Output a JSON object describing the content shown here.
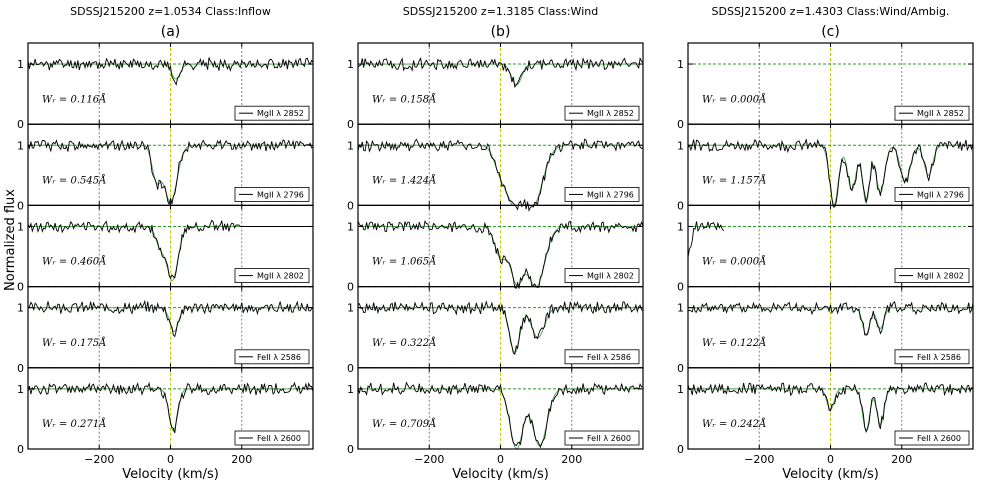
{
  "chart_data": {
    "type": "line",
    "ylabel": "Normalized flux",
    "xlabel": "Velocity (km/s)",
    "xlim": [
      -400,
      400
    ],
    "ylim": [
      0,
      1.35
    ],
    "xticks": [
      -200,
      0,
      200
    ],
    "xtick_labels": [
      "−200",
      "0",
      "200"
    ],
    "yticks": [
      0,
      1
    ],
    "ytick_labels": [
      "0",
      "1"
    ],
    "continuum_level": 1,
    "zero_level": 0,
    "colors": {
      "flux": "#000000",
      "model": "#5aa85a",
      "guide": "#2a9a2a",
      "zero_velocity": "#c8c800",
      "grid": "#808080"
    },
    "panels": [
      {
        "title": "SDSSJ215200 z=1.0534 Class:Inflow",
        "label": "(a)",
        "rows": [
          {
            "line": "MgII λ 2852",
            "wr": "Wᵣ = 0.116Å",
            "seed": 11,
            "absorption": [
              {
                "v": 15,
                "depth": 0.25,
                "width": 12
              }
            ]
          },
          {
            "line": "MgII λ 2796",
            "wr": "Wᵣ = 0.545Å",
            "seed": 12,
            "absorption": [
              {
                "v": -40,
                "depth": 0.55,
                "width": 12
              },
              {
                "v": 0,
                "depth": 0.95,
                "width": 18
              }
            ]
          },
          {
            "line": "MgII λ 2802",
            "wr": "Wᵣ = 0.460Å",
            "seed": 13,
            "absorption": [
              {
                "v": -30,
                "depth": 0.3,
                "width": 12
              },
              {
                "v": 5,
                "depth": 0.9,
                "width": 16
              }
            ],
            "flat_after": 195
          },
          {
            "line": "FeII λ 2586",
            "wr": "Wᵣ = 0.175Å",
            "seed": 14,
            "absorption": [
              {
                "v": 10,
                "depth": 0.4,
                "width": 12
              }
            ]
          },
          {
            "line": "FeII λ 2600",
            "wr": "Wᵣ = 0.271Å",
            "seed": 15,
            "absorption": [
              {
                "v": 8,
                "depth": 0.7,
                "width": 12
              }
            ]
          }
        ]
      },
      {
        "title": "SDSSJ215200 z=1.3185 Class:Wind",
        "label": "(b)",
        "rows": [
          {
            "line": "MgII λ 2852",
            "wr": "Wᵣ = 0.158Å",
            "seed": 21,
            "absorption": [
              {
                "v": 45,
                "depth": 0.35,
                "width": 14
              }
            ]
          },
          {
            "line": "MgII λ 2796",
            "wr": "Wᵣ = 1.424Å",
            "seed": 22,
            "absorption": [
              {
                "v": 0,
                "depth": 0.4,
                "width": 18
              },
              {
                "v": 40,
                "depth": 0.85,
                "width": 22
              },
              {
                "v": 90,
                "depth": 1.0,
                "width": 28
              }
            ]
          },
          {
            "line": "MgII λ 2802",
            "wr": "Wᵣ = 1.065Å",
            "seed": 23,
            "absorption": [
              {
                "v": 0,
                "depth": 0.5,
                "width": 16
              },
              {
                "v": 45,
                "depth": 0.9,
                "width": 18
              },
              {
                "v": 100,
                "depth": 1.0,
                "width": 24
              }
            ]
          },
          {
            "line": "FeII λ 2586",
            "wr": "Wᵣ = 0.322Å",
            "seed": 24,
            "absorption": [
              {
                "v": 40,
                "depth": 0.75,
                "width": 14
              },
              {
                "v": 105,
                "depth": 0.5,
                "width": 18
              }
            ]
          },
          {
            "line": "FeII λ 2600",
            "wr": "Wᵣ = 0.709Å",
            "seed": 25,
            "absorption": [
              {
                "v": 45,
                "depth": 1.0,
                "width": 18
              },
              {
                "v": 110,
                "depth": 0.95,
                "width": 20
              }
            ]
          }
        ]
      },
      {
        "title": "SDSSJ215200 z=1.4303 Class:Wind/Ambig.",
        "label": "(c)",
        "rows": [
          {
            "line": "MgII λ 2852",
            "wr": "Wᵣ = 0.000Å",
            "seed": 31,
            "absorption": [],
            "no_data": true
          },
          {
            "line": "MgII λ 2796",
            "wr": "Wᵣ = 1.157Å",
            "seed": 32,
            "absorption": [
              {
                "v": 10,
                "depth": 1.0,
                "width": 12
              },
              {
                "v": 60,
                "depth": 0.75,
                "width": 12
              },
              {
                "v": 100,
                "depth": 0.95,
                "width": 10
              },
              {
                "v": 140,
                "depth": 0.8,
                "width": 12
              },
              {
                "v": 210,
                "depth": 0.6,
                "width": 14
              },
              {
                "v": 275,
                "depth": 0.5,
                "width": 12
              }
            ]
          },
          {
            "line": "MgII λ 2802",
            "wr": "Wᵣ = 0.000Å",
            "seed": 33,
            "absorption": [],
            "partial_to": -300
          },
          {
            "line": "FeII λ 2586",
            "wr": "Wᵣ = 0.122Å",
            "seed": 34,
            "absorption": [
              {
                "v": 100,
                "depth": 0.45,
                "width": 10
              },
              {
                "v": 140,
                "depth": 0.35,
                "width": 10
              }
            ]
          },
          {
            "line": "FeII λ 2600",
            "wr": "Wᵣ = 0.242Å",
            "seed": 35,
            "absorption": [
              {
                "v": 0,
                "depth": 0.35,
                "width": 10
              },
              {
                "v": 100,
                "depth": 0.7,
                "width": 10
              },
              {
                "v": 140,
                "depth": 0.6,
                "width": 10
              }
            ]
          }
        ]
      }
    ]
  }
}
